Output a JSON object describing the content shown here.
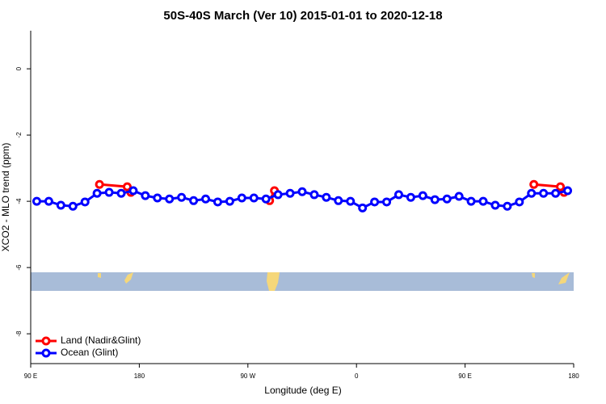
{
  "chart_data": {
    "type": "line",
    "title": "50S-40S March (Ver 10)   2015-01-01 to 2020-12-18",
    "xlabel": "Longitude (deg E)",
    "ylabel": "XCO2 - MLO trend (ppm)",
    "xlim": [
      90,
      540
    ],
    "ylim": [
      -8.9,
      1.15
    ],
    "xticks": [
      {
        "value": 90,
        "label": "90 E"
      },
      {
        "value": 180,
        "label": "180"
      },
      {
        "value": 270,
        "label": "90 W"
      },
      {
        "value": 360,
        "label": "0"
      },
      {
        "value": 450,
        "label": "90 E"
      },
      {
        "value": 540,
        "label": "180"
      }
    ],
    "yticks": [
      0,
      -2,
      -4,
      -6,
      -8
    ],
    "legend": "bottom-left",
    "series": [
      {
        "name": "Land (Nadir&Glint)",
        "color": "#ff0000",
        "x": [
          147,
          170,
          173,
          null,
          288,
          292,
          null,
          507,
          529,
          532
        ],
        "values": [
          -3.49,
          -3.56,
          -3.73,
          null,
          -3.98,
          -3.68,
          null,
          -3.49,
          -3.56,
          -3.73
        ]
      },
      {
        "name": "Ocean (Glint)",
        "color": "#0000ff",
        "x": [
          95,
          105,
          115,
          125,
          135,
          145,
          155,
          165,
          175,
          185,
          195,
          205,
          215,
          225,
          235,
          245,
          255,
          265,
          275,
          285,
          295,
          305,
          315,
          325,
          335,
          345,
          355,
          365,
          375,
          385,
          395,
          405,
          415,
          425,
          435,
          445,
          455,
          465,
          475,
          485,
          495,
          505,
          515,
          525,
          535
        ],
        "values": [
          -4.0,
          -4.0,
          -4.12,
          -4.15,
          -4.02,
          -3.76,
          -3.73,
          -3.76,
          -3.68,
          -3.83,
          -3.9,
          -3.93,
          -3.88,
          -3.98,
          -3.93,
          -4.02,
          -4.0,
          -3.9,
          -3.9,
          -3.93,
          -3.8,
          -3.76,
          -3.71,
          -3.8,
          -3.88,
          -3.98,
          -4.0,
          -4.2,
          -4.02,
          -4.02,
          -3.8,
          -3.88,
          -3.83,
          -3.95,
          -3.93,
          -3.85,
          -4.0,
          -4.0,
          -4.12,
          -4.15,
          -4.02,
          -3.76,
          -3.76,
          -3.76,
          -3.68
        ]
      }
    ]
  }
}
